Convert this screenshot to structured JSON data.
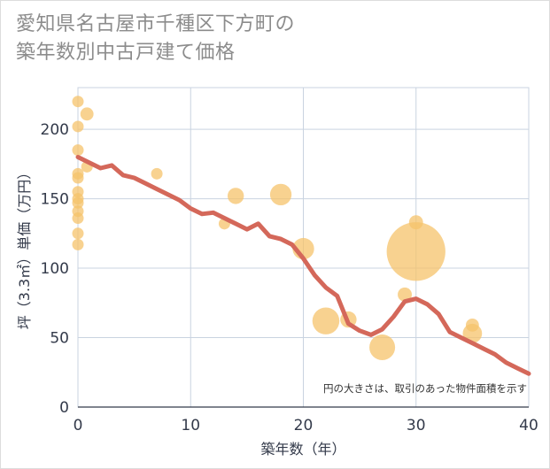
{
  "title_line1": "愛知県名古屋市千種区下方町の",
  "title_line2": "築年数別中古戸建て価格",
  "chart_data": {
    "type": "scatter",
    "xlabel": "築年数（年）",
    "ylabel": "坪（3.3㎡）単価（万円）",
    "xlim": [
      0,
      40
    ],
    "ylim": [
      0,
      230
    ],
    "xticks": [
      0,
      10,
      20,
      30,
      40
    ],
    "yticks": [
      0,
      50,
      100,
      150,
      200
    ],
    "grid": true,
    "note": "円の大きさは、取引のあった物件面積を示す",
    "colors": {
      "points": "#f5c36b",
      "line": "#d4685a",
      "grid": "#c9d3e0"
    },
    "points": [
      {
        "x": 0,
        "y": 220,
        "size": 1
      },
      {
        "x": 0,
        "y": 202,
        "size": 1
      },
      {
        "x": 0,
        "y": 185,
        "size": 1
      },
      {
        "x": 0,
        "y": 168,
        "size": 1
      },
      {
        "x": 0,
        "y": 165,
        "size": 1
      },
      {
        "x": 0,
        "y": 155,
        "size": 1
      },
      {
        "x": 0,
        "y": 150,
        "size": 1
      },
      {
        "x": 0,
        "y": 147,
        "size": 1
      },
      {
        "x": 0,
        "y": 141,
        "size": 1
      },
      {
        "x": 0,
        "y": 136,
        "size": 1
      },
      {
        "x": 0,
        "y": 125,
        "size": 1
      },
      {
        "x": 0,
        "y": 117,
        "size": 1
      },
      {
        "x": 0.8,
        "y": 211,
        "size": 1.3
      },
      {
        "x": 0.8,
        "y": 173,
        "size": 1
      },
      {
        "x": 7,
        "y": 168,
        "size": 1
      },
      {
        "x": 13,
        "y": 132,
        "size": 1
      },
      {
        "x": 14,
        "y": 152,
        "size": 2
      },
      {
        "x": 18,
        "y": 153,
        "size": 3.5
      },
      {
        "x": 20,
        "y": 114,
        "size": 3.5
      },
      {
        "x": 22,
        "y": 62,
        "size": 5.5
      },
      {
        "x": 24,
        "y": 63,
        "size": 2
      },
      {
        "x": 27,
        "y": 43,
        "size": 5
      },
      {
        "x": 29,
        "y": 81,
        "size": 1.5
      },
      {
        "x": 30,
        "y": 133,
        "size": 1.5
      },
      {
        "x": 30,
        "y": 112,
        "size": 26
      },
      {
        "x": 35,
        "y": 59,
        "size": 1.3
      },
      {
        "x": 35,
        "y": 53,
        "size": 2.8
      }
    ],
    "trend": {
      "x": [
        0,
        1,
        2,
        3,
        4,
        5,
        6,
        7,
        8,
        9,
        10,
        11,
        12,
        13,
        14,
        15,
        16,
        17,
        18,
        19,
        20,
        21,
        22,
        23,
        24,
        25,
        26,
        27,
        28,
        29,
        30,
        31,
        32,
        33,
        34,
        35,
        36,
        37,
        38,
        39,
        40
      ],
      "y": [
        180,
        176,
        172,
        174,
        167,
        165,
        161,
        157,
        153,
        149,
        143,
        139,
        140,
        136,
        132,
        128,
        132,
        123,
        121,
        117,
        107,
        95,
        86,
        80,
        60,
        55,
        52,
        56,
        65,
        76,
        78,
        74,
        67,
        54,
        50,
        46,
        42,
        38,
        32,
        28,
        24
      ]
    }
  }
}
